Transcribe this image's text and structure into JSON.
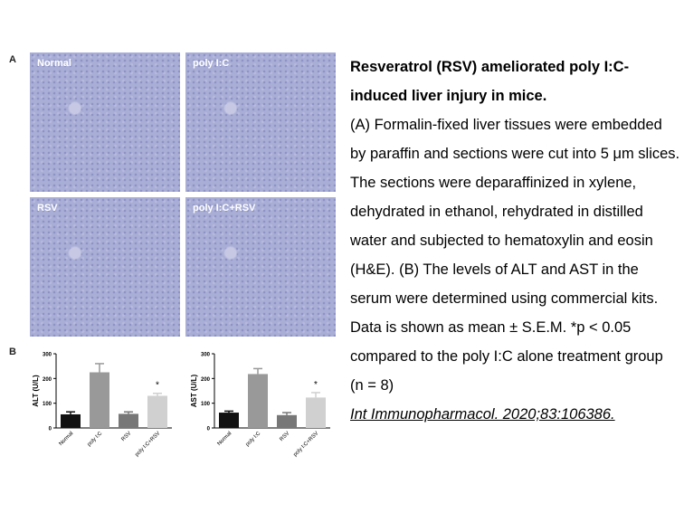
{
  "panel_a": {
    "label": "A",
    "images": [
      "Normal",
      "poly I:C",
      "RSV",
      "poly I:C+RSV"
    ]
  },
  "panel_b": {
    "label": "B"
  },
  "chart_data": [
    {
      "type": "bar",
      "ylabel": "ALT (U/L)",
      "ylim": [
        0,
        300
      ],
      "yticks": [
        0,
        100,
        200,
        300
      ],
      "categories": [
        "Normal",
        "poly I:C",
        "RSV",
        "poly I:C+RSV"
      ],
      "values": [
        55,
        225,
        57,
        130
      ],
      "errors": [
        10,
        35,
        8,
        10
      ],
      "colors": [
        "#111111",
        "#999999",
        "#777777",
        "#d0d0d0"
      ],
      "annotations": [
        "",
        "",
        "",
        "*"
      ]
    },
    {
      "type": "bar",
      "ylabel": "AST (U/L)",
      "ylim": [
        0,
        300
      ],
      "yticks": [
        0,
        100,
        200,
        300
      ],
      "categories": [
        "Normal",
        "poly I:C",
        "RSV",
        "poly I:C+RSV"
      ],
      "values": [
        62,
        218,
        52,
        123
      ],
      "errors": [
        6,
        22,
        10,
        20
      ],
      "colors": [
        "#111111",
        "#999999",
        "#777777",
        "#d0d0d0"
      ],
      "annotations": [
        "",
        "",
        "",
        "*"
      ]
    }
  ],
  "caption": {
    "title": "Resveratrol (RSV) ameliorated poly I:C-induced liver injury in mice.",
    "body": "(A) Formalin-fixed liver tissues were embedded by paraffin and sections were cut into 5 μm slices. The sections were deparaffinized in xylene, dehydrated in ethanol, rehydrated in distilled water and subjected to hematoxylin and eosin (H&E). (B) The levels of ALT and AST in the serum were determined using commercial kits. Data is shown as mean ± S.E.M. *p < 0.05 compared to the poly I:C alone treatment group (n = 8)",
    "citation": "Int Immunopharmacol. 2020;83:106386."
  }
}
